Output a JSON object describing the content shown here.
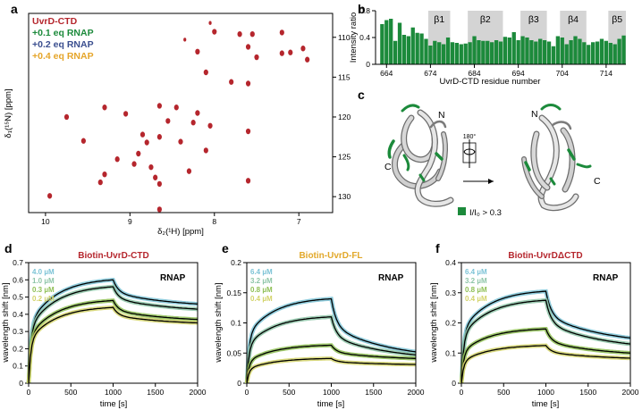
{
  "panels": {
    "a": {
      "letter": "a",
      "xlabel": "δ₂(¹H) [ppm]",
      "ylabel": "δ₁(¹⁵N) [ppm]",
      "legend": [
        {
          "text": "UvrD-CTD",
          "color": "#b5262d"
        },
        {
          "text": "+0.1 eq RNAP",
          "color": "#1c8a3b"
        },
        {
          "text": "+0.2 eq RNAP",
          "color": "#3b4f8f"
        },
        {
          "text": "+0.4 eq RNAP",
          "color": "#e5a52a"
        }
      ]
    },
    "b": {
      "letter": "b",
      "xlabel": "UvrD-CTD residue number",
      "ylabel": "Intensity ratio"
    },
    "c": {
      "letter": "c",
      "N1": "N",
      "C1": "C",
      "N2": "N",
      "C2": "C",
      "rot": "180°",
      "key": "I/I₀ > 0.3"
    },
    "d": {
      "letter": "d",
      "title": "Biotin-UvrD-CTD",
      "title_color": "#b5262d",
      "rnap": "RNAP",
      "xlabel": "time [s]",
      "ylabel": "wavelength shift [nm]",
      "conc": [
        {
          "text": "4.0 µM",
          "color": "#7cc3d6"
        },
        {
          "text": "1.0 µM",
          "color": "#8ec5a8"
        },
        {
          "text": "0.3 µM",
          "color": "#8fbf55"
        },
        {
          "text": "0.2 µM",
          "color": "#d3d36a"
        }
      ]
    },
    "e": {
      "letter": "e",
      "title": "Biotin-UvrD-FL",
      "title_color": "#e2a82a",
      "rnap": "RNAP",
      "xlabel": "time [s]",
      "ylabel": "wavelength shift [nm]",
      "conc": [
        {
          "text": "6.4 µM",
          "color": "#7cc3d6"
        },
        {
          "text": "3.2 µM",
          "color": "#8ec5a8"
        },
        {
          "text": "0.8 µM",
          "color": "#8fbf55"
        },
        {
          "text": "0.4 µM",
          "color": "#d3d36a"
        }
      ]
    },
    "f": {
      "letter": "f",
      "title": "Biotin-UvrDΔCTD",
      "title_color": "#b5262d",
      "rnap": "RNAP",
      "xlabel": "time [s]",
      "ylabel": "wavelength shift [nm]",
      "conc": [
        {
          "text": "6.4 µM",
          "color": "#7cc3d6"
        },
        {
          "text": "3.2 µM",
          "color": "#8ec5a8"
        },
        {
          "text": "0.8 µM",
          "color": "#8fbf55"
        },
        {
          "text": "0.4 µM",
          "color": "#d3d36a"
        }
      ]
    }
  },
  "chart_data": [
    {
      "id": "a",
      "type": "scatter",
      "xlabel": "δ₂(¹H) [ppm]",
      "ylabel": "δ₁(¹⁵N) [ppm]",
      "xlim": [
        10.2,
        6.6
      ],
      "ylim": [
        107,
        132
      ],
      "xticks": [
        10,
        9,
        8,
        7
      ],
      "yticks": [
        110,
        115,
        120,
        125,
        130
      ],
      "series": [
        {
          "name": "UvrD-CTD",
          "color": "#b5262d",
          "points": [
            [
              8.05,
              108.2
            ],
            [
              8.0,
              109.3
            ],
            [
              7.7,
              109.6
            ],
            [
              7.55,
              109.6
            ],
            [
              7.2,
              109.4
            ],
            [
              8.35,
              110.3
            ],
            [
              7.6,
              111.2
            ],
            [
              6.95,
              111.4
            ],
            [
              7.1,
              111.9
            ],
            [
              7.2,
              112.0
            ],
            [
              7.5,
              112.5
            ],
            [
              6.9,
              112.8
            ],
            [
              8.2,
              111.8
            ],
            [
              8.1,
              114.4
            ],
            [
              7.8,
              115.6
            ],
            [
              7.6,
              115.8
            ],
            [
              9.3,
              118.8
            ],
            [
              8.65,
              118.6
            ],
            [
              8.45,
              118.8
            ],
            [
              8.2,
              119.5
            ],
            [
              9.05,
              119.6
            ],
            [
              9.75,
              120.0
            ],
            [
              8.55,
              120.5
            ],
            [
              8.25,
              120.7
            ],
            [
              8.05,
              121.1
            ],
            [
              7.6,
              121.8
            ],
            [
              8.85,
              122.2
            ],
            [
              8.65,
              122.5
            ],
            [
              8.4,
              123.1
            ],
            [
              9.55,
              123.0
            ],
            [
              8.8,
              123.2
            ],
            [
              8.9,
              124.6
            ],
            [
              8.1,
              124.2
            ],
            [
              9.15,
              125.3
            ],
            [
              8.95,
              125.9
            ],
            [
              8.75,
              126.3
            ],
            [
              8.3,
              126.8
            ],
            [
              9.3,
              127.2
            ],
            [
              8.7,
              127.6
            ],
            [
              9.35,
              128.2
            ],
            [
              7.6,
              128.0
            ],
            [
              8.65,
              128.4
            ],
            [
              9.95,
              129.9
            ],
            [
              8.65,
              131.6
            ]
          ]
        }
      ]
    },
    {
      "id": "b",
      "type": "bar",
      "xlabel": "UvrD-CTD residue number",
      "ylabel": "Intensity ratio",
      "xlim": [
        662,
        719
      ],
      "ylim": [
        0,
        0.8
      ],
      "xticks": [
        664,
        674,
        684,
        694,
        704,
        714
      ],
      "yticks": [
        0,
        0.4,
        0.8
      ],
      "strands": [
        {
          "label": "β1",
          "start": 674,
          "end": 678
        },
        {
          "label": "β2",
          "start": 683,
          "end": 690
        },
        {
          "label": "β3",
          "start": 695,
          "end": 700
        },
        {
          "label": "β4",
          "start": 704,
          "end": 709
        },
        {
          "label": "β5",
          "start": 715,
          "end": 718
        }
      ],
      "residues": [
        663,
        664,
        665,
        666,
        667,
        668,
        669,
        670,
        671,
        672,
        673,
        674,
        675,
        676,
        677,
        678,
        679,
        680,
        681,
        682,
        683,
        684,
        685,
        686,
        687,
        688,
        689,
        690,
        691,
        692,
        693,
        694,
        695,
        696,
        697,
        698,
        699,
        700,
        701,
        702,
        703,
        704,
        705,
        706,
        707,
        708,
        709,
        710,
        711,
        712,
        713,
        714,
        715,
        716,
        717,
        718
      ],
      "values": [
        0.6,
        0.66,
        0.68,
        0.35,
        0.62,
        0.44,
        0.42,
        0.55,
        0.47,
        0.46,
        0.38,
        0.28,
        0.35,
        0.33,
        0.3,
        0.4,
        0.33,
        0.32,
        0.3,
        0.31,
        0.33,
        0.42,
        0.36,
        0.35,
        0.35,
        0.33,
        0.36,
        0.34,
        0.41,
        0.4,
        0.48,
        0.36,
        0.42,
        0.4,
        0.36,
        0.34,
        0.38,
        0.36,
        0.34,
        0.27,
        0.42,
        0.4,
        0.3,
        0.36,
        0.42,
        0.38,
        0.33,
        0.29,
        0.33,
        0.34,
        0.38,
        0.35,
        0.32,
        0.3,
        0.38,
        0.43
      ]
    },
    {
      "id": "d",
      "type": "line",
      "title": "Biotin-UvrD-CTD",
      "xlabel": "time [s]",
      "ylabel": "wavelength shift [nm]",
      "xlim": [
        0,
        2000
      ],
      "ylim": [
        0,
        0.7
      ],
      "xticks": [
        0,
        500,
        1000,
        1500,
        2000
      ],
      "yticks": [
        0,
        0.1,
        0.2,
        0.3,
        0.4,
        0.5,
        0.6,
        0.7
      ],
      "series": [
        {
          "name": "4.0 µM",
          "peak": 0.6,
          "end": 0.46
        },
        {
          "name": "1.0 µM",
          "peak": 0.56,
          "end": 0.43
        },
        {
          "name": "0.3 µM",
          "peak": 0.48,
          "end": 0.37
        },
        {
          "name": "0.2 µM",
          "peak": 0.44,
          "end": 0.35
        }
      ]
    },
    {
      "id": "e",
      "type": "line",
      "title": "Biotin-UvrD-FL",
      "xlabel": "time [s]",
      "ylabel": "wavelength shift [nm]",
      "xlim": [
        0,
        2000
      ],
      "ylim": [
        0,
        0.2
      ],
      "xticks": [
        0,
        500,
        1000,
        1500,
        2000
      ],
      "yticks": [
        0,
        0.05,
        0.1,
        0.15,
        0.2
      ],
      "series": [
        {
          "name": "6.4 µM",
          "peak": 0.14,
          "end": 0.052
        },
        {
          "name": "3.2 µM",
          "peak": 0.11,
          "end": 0.047
        },
        {
          "name": "0.8 µM",
          "peak": 0.063,
          "end": 0.041
        },
        {
          "name": "0.4 µM",
          "peak": 0.041,
          "end": 0.031
        }
      ]
    },
    {
      "id": "f",
      "type": "line",
      "title": "Biotin-UvrDΔCTD",
      "xlabel": "time [s]",
      "ylabel": "wavelength shift [nm]",
      "xlim": [
        0,
        2000
      ],
      "ylim": [
        0,
        0.4
      ],
      "xticks": [
        0,
        500,
        1000,
        1500,
        2000
      ],
      "yticks": [
        0,
        0.1,
        0.2,
        0.3,
        0.4
      ],
      "series": [
        {
          "name": "6.4 µM",
          "peak": 0.305,
          "end": 0.15
        },
        {
          "name": "3.2 µM",
          "peak": 0.275,
          "end": 0.13
        },
        {
          "name": "0.8 µM",
          "peak": 0.18,
          "end": 0.1
        },
        {
          "name": "0.4 µM",
          "peak": 0.125,
          "end": 0.083
        }
      ]
    }
  ]
}
